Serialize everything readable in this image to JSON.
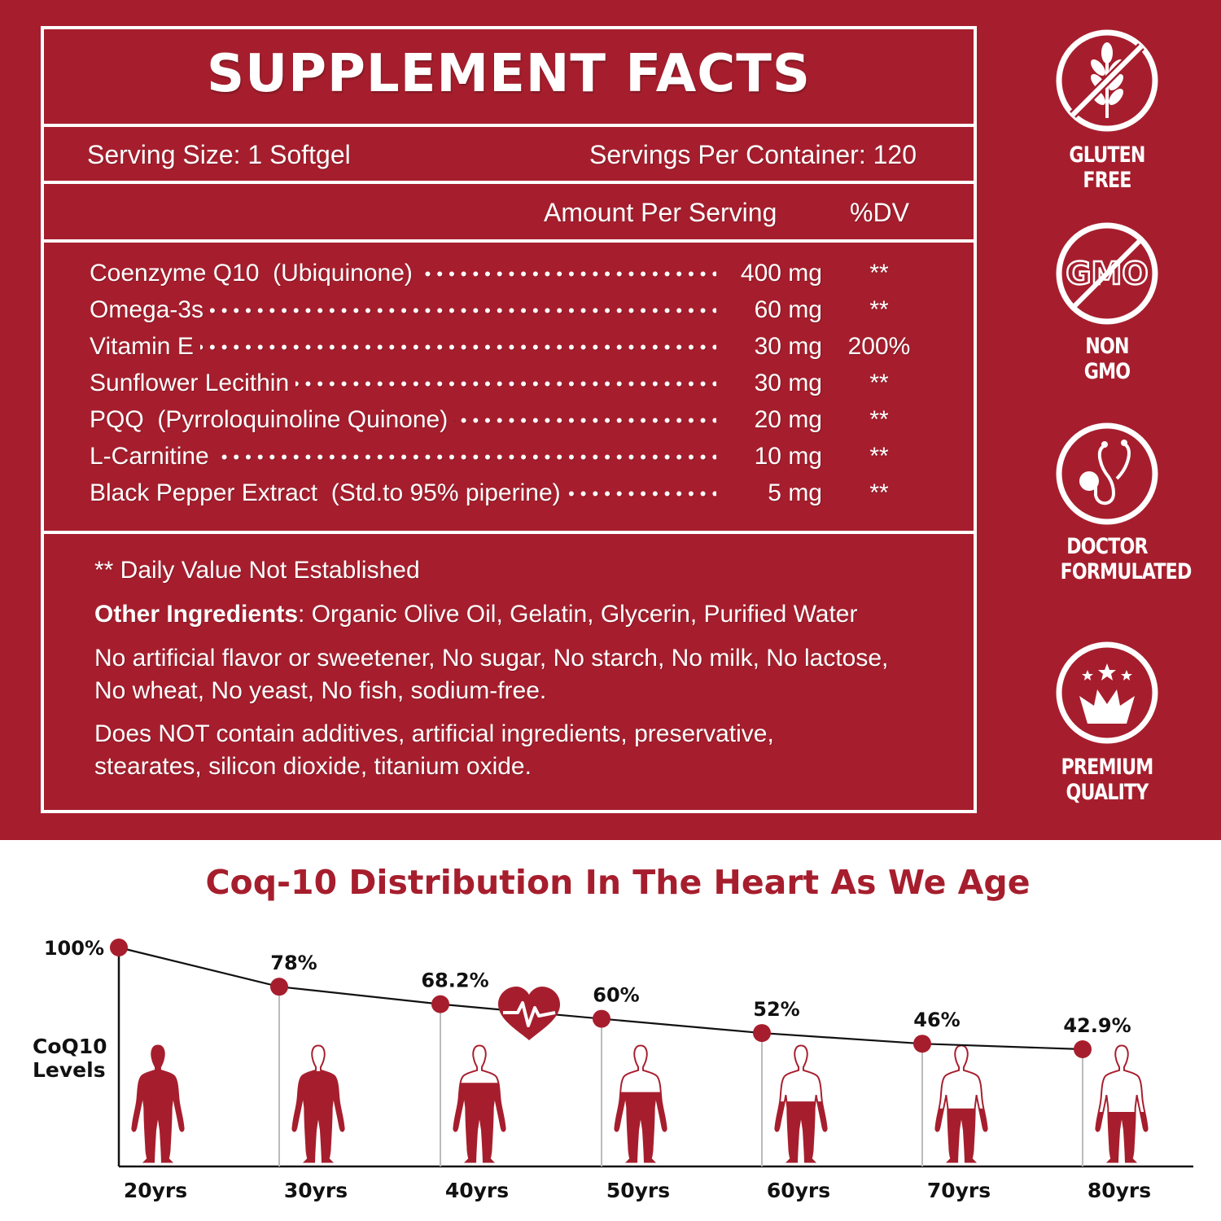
{
  "colors": {
    "brand_red": "#A61E2D",
    "white": "#ffffff",
    "axis": "#111111",
    "gridline": "#bbbbbb"
  },
  "facts": {
    "title": "SUPPLEMENT FACTS",
    "serving_size": "Serving Size: 1 Softgel",
    "servings_per_container": "Servings Per Container: 120",
    "amount_header": "Amount Per Serving",
    "dv_header": "%DV",
    "ingredients": [
      {
        "name": "Coenzyme Q10  (Ubiquinone)",
        "amount": "400 mg",
        "dv": "**"
      },
      {
        "name": "Omega-3s",
        "amount": "60 mg",
        "dv": "**"
      },
      {
        "name": "Vitamin E",
        "amount": "30 mg",
        "dv": "200%"
      },
      {
        "name": "Sunflower Lecithin",
        "amount": "30 mg",
        "dv": "**"
      },
      {
        "name": "PQQ  (Pyrroloquinoline Quinone)",
        "amount": "20 mg",
        "dv": "**"
      },
      {
        "name": "L-Carnitine",
        "amount": "10 mg",
        "dv": "**"
      },
      {
        "name": "Black Pepper Extract  (Std.to 95% piperine)",
        "amount": "5 mg",
        "dv": "**"
      }
    ],
    "dots": "••••••••••••••••••••••••••••••••••••••••••••••••••••••••••••",
    "dv_note": "** Daily Value Not Established",
    "other_label": "Other Ingredients",
    "other_text": ": Organic Olive Oil, Gelatin, Glycerin, Purified Water",
    "free_from": "No artificial flavor or sweetener, No sugar, No starch, No milk, No lactose, No wheat, No yeast, No fish, sodium-free.",
    "not_contain": "Does NOT contain additives, artificial ingredients, preservative, stearates, silicon dioxide, titanium oxide."
  },
  "badges": [
    {
      "icon": "no-wheat-icon",
      "label": "GLUTEN FREE"
    },
    {
      "icon": "no-gmo-icon",
      "label": "NON GMO"
    },
    {
      "icon": "stethoscope-icon",
      "label_lines": [
        "DOCTOR",
        "FORMULATED"
      ]
    },
    {
      "icon": "crown-stars-icon",
      "label_lines": [
        "PREMIUM",
        "QUALITY"
      ]
    }
  ],
  "chart_data": {
    "type": "line",
    "title": "Coq-10 Distribution In The Heart As We Age",
    "xlabel": "",
    "ylabel": "CoQ10 Levels",
    "categories": [
      "20yrs",
      "30yrs",
      "40yrs",
      "50yrs",
      "60yrs",
      "70yrs",
      "80yrs"
    ],
    "values": [
      100,
      78,
      68.2,
      60,
      52,
      46,
      42.9
    ],
    "labels": [
      "100%",
      "78%",
      "68.2%",
      "60%",
      "52%",
      "46%",
      "42.9%"
    ],
    "ylabel_lines": [
      "CoQ10",
      "Levels"
    ],
    "grid": false,
    "annotations": [
      "heart-pulse-icon between 40yrs and 50yrs",
      "human figure fill level per age group"
    ],
    "figure_fill_fraction": [
      1.0,
      0.78,
      0.68,
      0.6,
      0.52,
      0.46,
      0.43
    ]
  }
}
